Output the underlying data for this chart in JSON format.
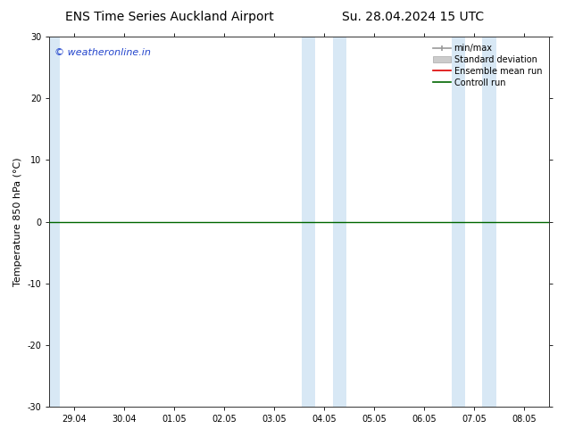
{
  "title_left": "ENS Time Series Auckland Airport",
  "title_right": "Su. 28.04.2024 15 UTC",
  "ylabel": "Temperature 850 hPa (°C)",
  "ylim": [
    -30,
    30
  ],
  "yticks": [
    -30,
    -20,
    -10,
    0,
    10,
    20,
    30
  ],
  "xtick_labels": [
    "29.04",
    "30.04",
    "01.05",
    "02.05",
    "03.05",
    "04.05",
    "05.05",
    "06.05",
    "07.05",
    "08.05"
  ],
  "watermark": "© weatheronline.in",
  "watermark_color": "#2244cc",
  "background_color": "#ffffff",
  "plot_bg_color": "#ffffff",
  "shaded_color": "#d8e8f5",
  "zero_line_y": 0,
  "ensemble_mean_color": "#dd0000",
  "control_run_color": "#006600",
  "min_max_color": "#999999",
  "std_dev_color": "#cccccc",
  "legend_labels": [
    "min/max",
    "Standard deviation",
    "Ensemble mean run",
    "Controll run"
  ],
  "font_size_title": 10,
  "font_size_axis": 8,
  "font_size_tick": 7,
  "font_size_legend": 7,
  "font_size_watermark": 8
}
